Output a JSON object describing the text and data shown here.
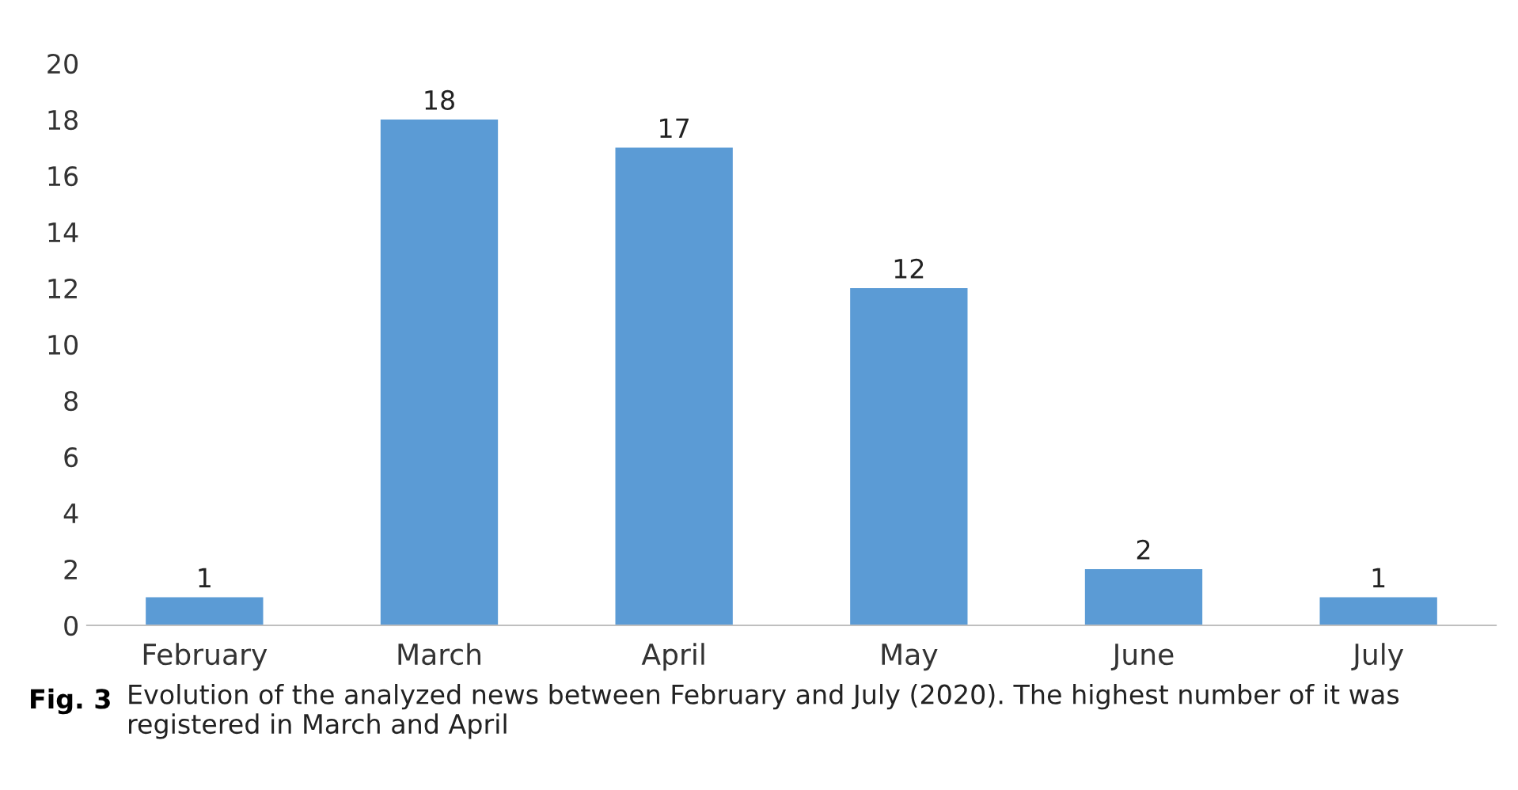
{
  "chart_data": {
    "type": "bar",
    "categories": [
      "February",
      "March",
      "April",
      "May",
      "June",
      "July"
    ],
    "values": [
      1,
      18,
      17,
      12,
      2,
      1
    ],
    "color": "#5b9bd5",
    "ylim": [
      0,
      20
    ],
    "yticks": [
      0,
      2,
      4,
      6,
      8,
      10,
      12,
      14,
      16,
      18,
      20
    ],
    "data_labels": true,
    "grid": false,
    "legend": false,
    "annotations": [
      "Fig. 3",
      "Evolution of the analyzed news between February and July (2020). The highest number of it was registered in March and April"
    ]
  }
}
